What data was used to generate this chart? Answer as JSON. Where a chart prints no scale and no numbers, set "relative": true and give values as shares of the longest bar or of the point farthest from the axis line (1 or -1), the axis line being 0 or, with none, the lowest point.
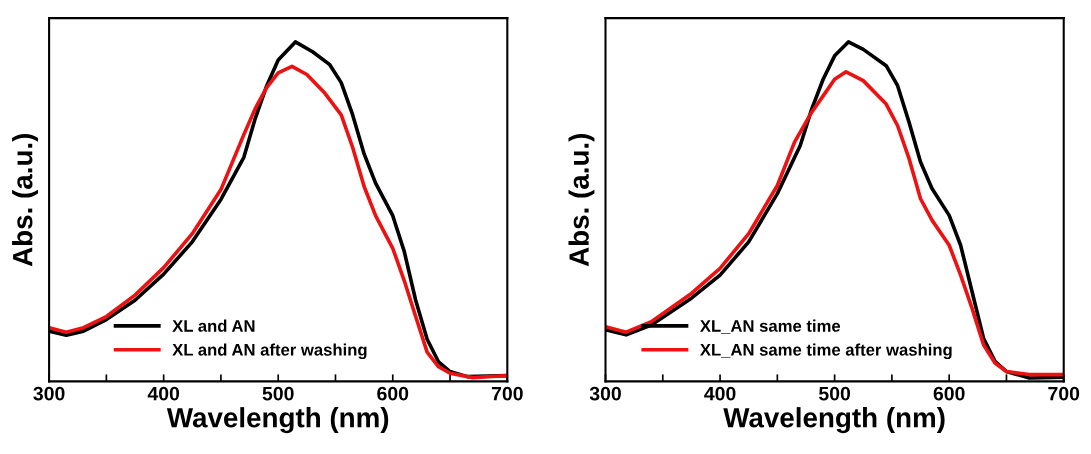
{
  "chart_data": [
    {
      "type": "line",
      "relative": true,
      "xlabel": "Wavelength (nm)",
      "ylabel": "Abs. (a.u.)",
      "xlim": [
        300,
        700
      ],
      "xticks": [
        300,
        {
          "value": 350,
          "label": null
        },
        400,
        {
          "value": 450,
          "label": null
        },
        500,
        {
          "value": 550,
          "label": null
        },
        600,
        {
          "value": 650,
          "label": null
        },
        700
      ],
      "tick_labels": "x",
      "legend": "bottom",
      "grid": false,
      "marker": "none",
      "line_style": "solid",
      "series": [
        {
          "name": "XL and AN",
          "color": "#000000",
          "x": [
            300,
            315,
            330,
            350,
            375,
            400,
            425,
            450,
            470,
            480,
            490,
            500,
            515,
            530,
            545,
            555,
            565,
            575,
            585,
            600,
            610,
            620,
            630,
            640,
            650,
            665,
            700
          ],
          "values": [
            0.148,
            0.136,
            0.148,
            0.182,
            0.239,
            0.316,
            0.411,
            0.536,
            0.66,
            0.775,
            0.871,
            0.947,
            1.0,
            0.971,
            0.933,
            0.88,
            0.785,
            0.67,
            0.584,
            0.488,
            0.383,
            0.239,
            0.124,
            0.057,
            0.029,
            0.014,
            0.017
          ]
        },
        {
          "name": "XL and AN after washing",
          "color": "#ee1111",
          "x": [
            300,
            315,
            330,
            350,
            375,
            400,
            425,
            450,
            470,
            480,
            490,
            500,
            512,
            525,
            540,
            555,
            565,
            575,
            585,
            600,
            610,
            620,
            630,
            640,
            650,
            670,
            700
          ],
          "values": [
            0.158,
            0.145,
            0.158,
            0.191,
            0.254,
            0.335,
            0.435,
            0.565,
            0.727,
            0.804,
            0.866,
            0.909,
            0.928,
            0.904,
            0.852,
            0.785,
            0.689,
            0.574,
            0.488,
            0.392,
            0.297,
            0.191,
            0.086,
            0.043,
            0.024,
            0.011,
            0.017
          ]
        }
      ]
    },
    {
      "type": "line",
      "relative": true,
      "xlabel": "Wavelength (nm)",
      "ylabel": "Abs. (a.u.)",
      "xlim": [
        300,
        700
      ],
      "xticks": [
        300,
        {
          "value": 350,
          "label": null
        },
        400,
        {
          "value": 450,
          "label": null
        },
        500,
        {
          "value": 550,
          "label": null
        },
        600,
        {
          "value": 650,
          "label": null
        },
        700
      ],
      "tick_labels": "x",
      "legend": "bottom",
      "grid": false,
      "marker": "none",
      "line_style": "solid",
      "series": [
        {
          "name": "XL_AN same time",
          "color": "#000000",
          "x": [
            300,
            318,
            340,
            375,
            400,
            425,
            450,
            470,
            480,
            490,
            500,
            512,
            525,
            545,
            555,
            565,
            575,
            585,
            600,
            610,
            620,
            630,
            640,
            650,
            670,
            700
          ],
          "values": [
            0.152,
            0.137,
            0.166,
            0.245,
            0.313,
            0.411,
            0.553,
            0.695,
            0.802,
            0.89,
            0.959,
            1.0,
            0.978,
            0.93,
            0.871,
            0.763,
            0.646,
            0.568,
            0.489,
            0.401,
            0.264,
            0.127,
            0.059,
            0.029,
            0.01,
            0.012
          ]
        },
        {
          "name": "XL_AN same time after washing",
          "color": "#ee1111",
          "x": [
            300,
            318,
            340,
            375,
            400,
            425,
            450,
            465,
            480,
            490,
            500,
            510,
            525,
            545,
            555,
            565,
            575,
            585,
            600,
            610,
            620,
            630,
            640,
            650,
            670,
            700
          ],
          "values": [
            0.161,
            0.145,
            0.176,
            0.259,
            0.333,
            0.435,
            0.577,
            0.705,
            0.793,
            0.841,
            0.89,
            0.912,
            0.886,
            0.817,
            0.753,
            0.656,
            0.538,
            0.475,
            0.401,
            0.313,
            0.215,
            0.108,
            0.054,
            0.029,
            0.02,
            0.02
          ]
        }
      ]
    }
  ]
}
